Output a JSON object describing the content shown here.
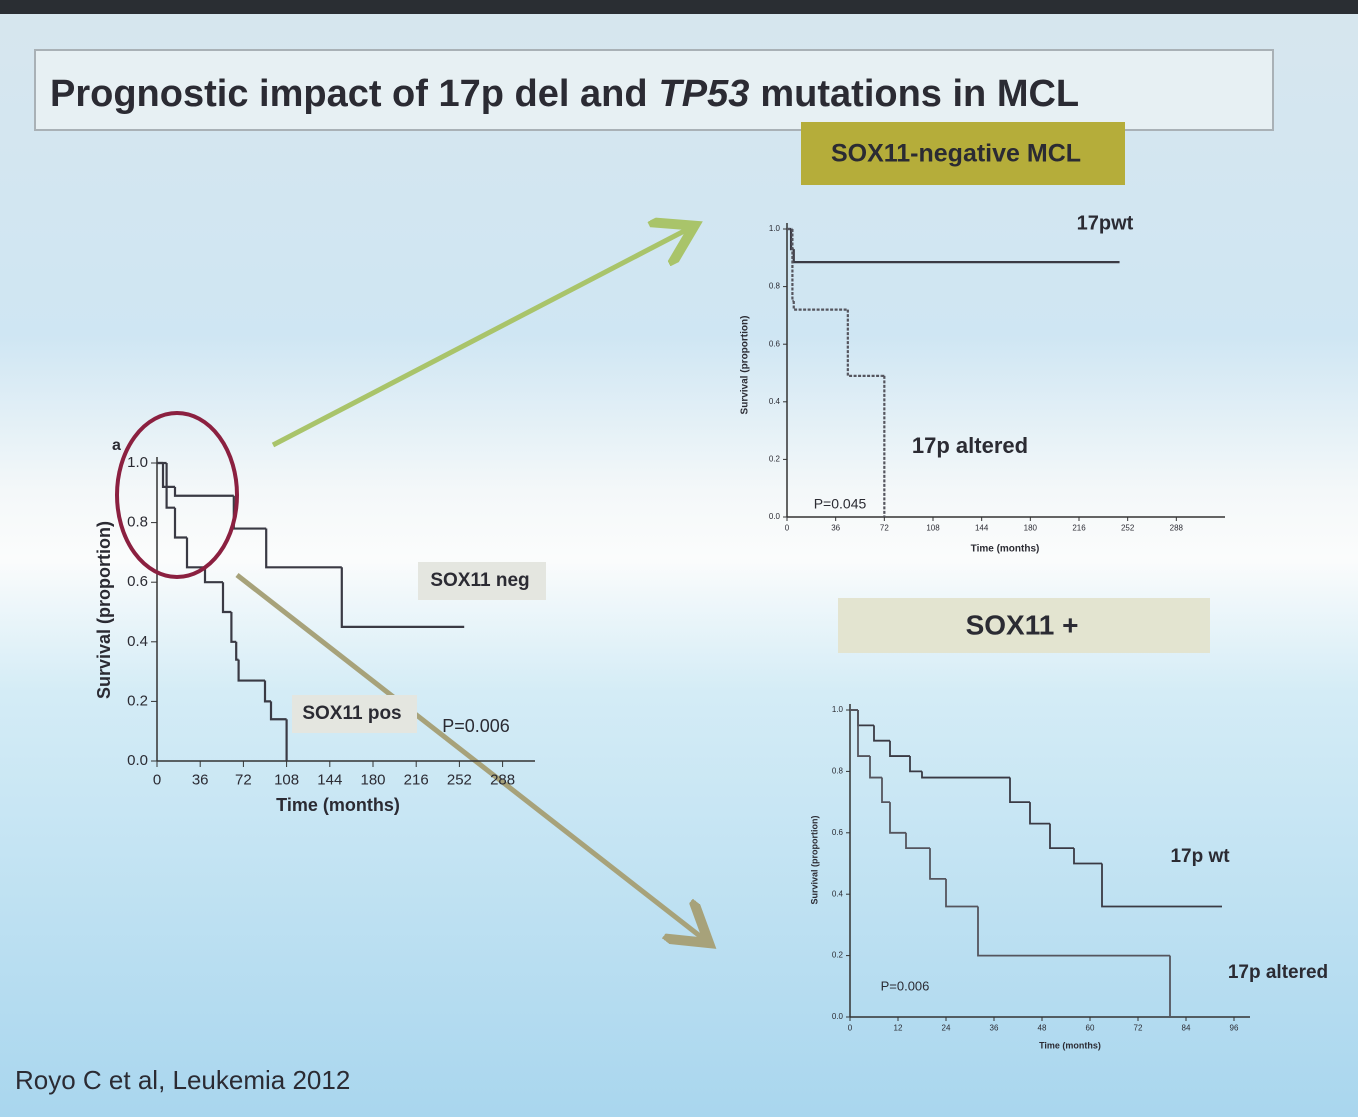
{
  "title": [
    "Prognostic impact of 17p del and",
    "TP53",
    "mutations in MCL"
  ],
  "citation": "Royo C et al, Leukemia 2012",
  "chart_data": [
    {
      "type": "line",
      "step": true,
      "panel_label": "a",
      "xlabel": "Time (months)",
      "ylabel": "Survival (proportion)",
      "xlim": [
        0,
        315
      ],
      "ylim": [
        0,
        1
      ],
      "xticks": [
        0,
        36,
        72,
        108,
        144,
        180,
        216,
        252,
        288
      ],
      "yticks": [
        {
          "value": 0,
          "label": "0.0"
        },
        0.2,
        0.4,
        0.6,
        0.8,
        {
          "value": 1,
          "label": "1.0"
        }
      ],
      "annotations": [
        "P=0.006"
      ],
      "series": [
        {
          "name": "SOX11 neg",
          "color": "#3a3a44",
          "x": [
            0,
            5,
            15,
            64,
            91,
            154,
            256
          ],
          "values": [
            1.0,
            0.92,
            0.89,
            0.78,
            0.65,
            0.45,
            0.45
          ]
        },
        {
          "name": "SOX11 pos",
          "color": "#3a3a44",
          "x": [
            0,
            8,
            15,
            25,
            40,
            55,
            62,
            66,
            68,
            90,
            95,
            108
          ],
          "values": [
            1.0,
            0.85,
            0.75,
            0.65,
            0.6,
            0.5,
            0.4,
            0.34,
            0.27,
            0.2,
            0.14,
            0
          ]
        }
      ]
    },
    {
      "type": "line",
      "step": true,
      "title": "SOX11-negative MCL",
      "xlabel": "Time (months)",
      "ylabel": "Survival (proportion)",
      "xlim": [
        0,
        324
      ],
      "ylim": [
        0,
        1
      ],
      "xticks": [
        0,
        36,
        72,
        108,
        144,
        180,
        216,
        252,
        288
      ],
      "yticks": [
        {
          "value": 0,
          "label": "0.0"
        },
        0.2,
        0.4,
        0.6,
        0.8,
        {
          "value": 1,
          "label": "1.0"
        }
      ],
      "annotations": [
        "P=0.045"
      ],
      "series": [
        {
          "name": "17pwt",
          "color": "#3a3a44",
          "x": [
            0,
            3,
            5,
            246
          ],
          "values": [
            1.0,
            0.93,
            0.885,
            0.885
          ]
        },
        {
          "name": "17p altered",
          "color": "#55555e",
          "x": [
            0,
            4,
            5,
            45,
            70,
            72
          ],
          "values": [
            1.0,
            0.75,
            0.72,
            0.49,
            0.49,
            0
          ]
        }
      ]
    },
    {
      "type": "line",
      "step": true,
      "title": "SOX11 +",
      "xlabel": "Time (months)",
      "ylabel": "Survival (proportion)",
      "xlim": [
        0,
        100
      ],
      "ylim": [
        0,
        1
      ],
      "xticks": [
        0,
        12,
        24,
        36,
        48,
        60,
        72,
        84,
        96
      ],
      "yticks": [
        {
          "value": 0,
          "label": "0.0"
        },
        0.2,
        0.4,
        0.6,
        0.8,
        {
          "value": 1,
          "label": "1.0"
        }
      ],
      "annotations": [
        "P=0.006"
      ],
      "series": [
        {
          "name": "17p  wt",
          "color": "#3a3a44",
          "x": [
            0,
            2,
            6,
            10,
            15,
            18,
            40,
            45,
            50,
            56,
            63,
            93
          ],
          "values": [
            1.0,
            0.95,
            0.9,
            0.85,
            0.8,
            0.78,
            0.7,
            0.63,
            0.55,
            0.5,
            0.36,
            0.36
          ]
        },
        {
          "name": "17p altered",
          "color": "#55555e",
          "x": [
            0,
            2,
            5,
            8,
            10,
            14,
            20,
            24,
            32,
            80
          ],
          "values": [
            1.0,
            0.85,
            0.78,
            0.7,
            0.6,
            0.55,
            0.45,
            0.36,
            0.2,
            0
          ]
        }
      ]
    }
  ]
}
